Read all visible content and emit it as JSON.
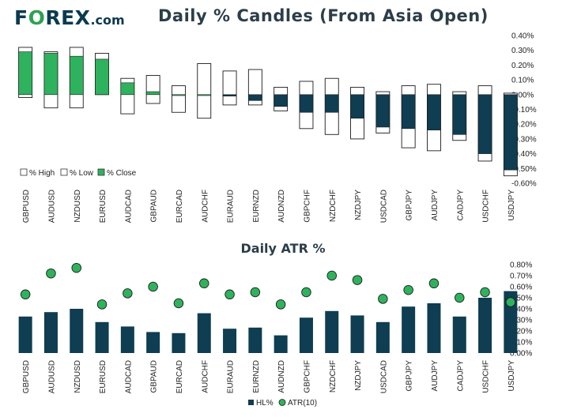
{
  "brand": {
    "name_prefix": "F",
    "name_o": "O",
    "name_suffix": "REX",
    "domain": ".com"
  },
  "chart_data": [
    {
      "type": "candlestick",
      "title": "Daily % Candles (From Asia Open)",
      "categories": [
        "GBPUSD",
        "AUDUSD",
        "NZDUSD",
        "EURUSD",
        "AUDCAD",
        "GBPAUD",
        "EURCAD",
        "AUDCHF",
        "EURAUD",
        "EURNZD",
        "AUDNZD",
        "GBPCHF",
        "NZDCHF",
        "NZDJPY",
        "USDCAD",
        "GBPJPY",
        "AUDJPY",
        "CADJPY",
        "USDCHF",
        "USDJPY"
      ],
      "high": [
        0.32,
        0.29,
        0.32,
        0.28,
        0.11,
        0.13,
        0.06,
        0.21,
        0.16,
        0.17,
        0.05,
        0.09,
        0.11,
        0.05,
        0.02,
        0.06,
        0.07,
        0.02,
        0.06,
        0.01
      ],
      "low": [
        -0.02,
        -0.09,
        -0.09,
        0.0,
        -0.13,
        -0.06,
        -0.12,
        -0.16,
        -0.07,
        -0.07,
        -0.11,
        -0.23,
        -0.27,
        -0.3,
        -0.26,
        -0.36,
        -0.38,
        -0.31,
        -0.45,
        -0.55
      ],
      "close": [
        0.29,
        0.28,
        0.26,
        0.24,
        0.08,
        0.02,
        0.0,
        0.0,
        -0.01,
        -0.04,
        -0.08,
        -0.12,
        -0.12,
        -0.16,
        -0.22,
        -0.23,
        -0.24,
        -0.27,
        -0.4,
        -0.51
      ],
      "ylim": [
        -0.6,
        0.4
      ],
      "yticks": [
        "0.40%",
        "0.30%",
        "0.20%",
        "0.10%",
        "0.00%",
        "-0.10%",
        "-0.20%",
        "-0.30%",
        "-0.40%",
        "-0.50%",
        "-0.60%"
      ],
      "legend": [
        "% High",
        "% Low",
        "% Close"
      ],
      "legend_position": "bottom-left",
      "colors": {
        "up": "#2fb25d",
        "down": "#0f3d52",
        "range_fill": "#ffffff",
        "outline": "#1b1b1b"
      }
    },
    {
      "type": "bar",
      "title": "Daily ATR %",
      "categories": [
        "GBPUSD",
        "AUDUSD",
        "NZDUSD",
        "EURUSD",
        "AUDCAD",
        "GBPAUD",
        "EURCAD",
        "AUDCHF",
        "EURAUD",
        "EURNZD",
        "AUDNZD",
        "GBPCHF",
        "NZDCHF",
        "NZDJPY",
        "USDCAD",
        "GBPJPY",
        "AUDJPY",
        "CADJPY",
        "USDCHF",
        "USDJPY"
      ],
      "series": [
        {
          "name": "HL%",
          "values": [
            0.33,
            0.37,
            0.4,
            0.28,
            0.24,
            0.19,
            0.18,
            0.36,
            0.22,
            0.23,
            0.16,
            0.32,
            0.38,
            0.34,
            0.28,
            0.42,
            0.45,
            0.33,
            0.5,
            0.56
          ]
        },
        {
          "name": "ATR(10)",
          "values": [
            0.53,
            0.72,
            0.77,
            0.44,
            0.54,
            0.6,
            0.45,
            0.63,
            0.53,
            0.55,
            0.44,
            0.55,
            0.7,
            0.66,
            0.49,
            0.57,
            0.63,
            0.5,
            0.55,
            0.46
          ]
        }
      ],
      "ylim": [
        0.0,
        0.8
      ],
      "yticks": [
        "0.80%",
        "0.70%",
        "0.60%",
        "0.50%",
        "0.40%",
        "0.30%",
        "0.20%",
        "0.10%",
        "0.00%"
      ],
      "legend": [
        "HL%",
        "ATR(10)"
      ],
      "legend_position": "bottom-center",
      "colors": {
        "bar": "#0f3d52",
        "dot": "#2fb25d"
      }
    }
  ]
}
